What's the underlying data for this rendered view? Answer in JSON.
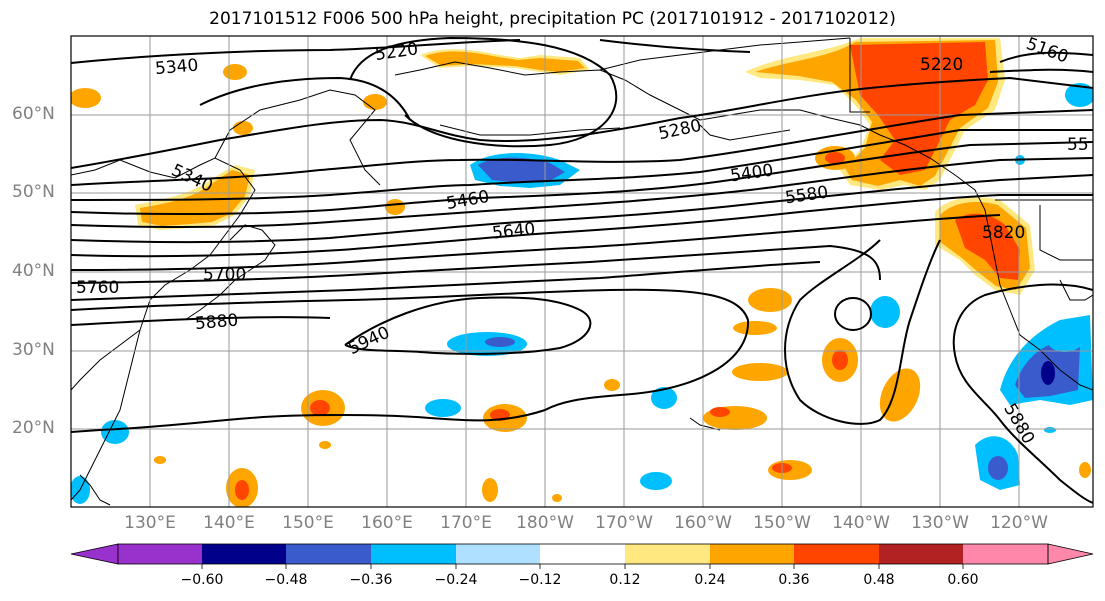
{
  "title": "2017101512 F006 500 hPa height, precipitation PC (2017101912 - 2017102012)",
  "lat_labels": [
    "60°N",
    "50°N",
    "40°N",
    "30°N",
    "20°N"
  ],
  "lon_labels": [
    "130°E",
    "140°E",
    "150°E",
    "160°E",
    "170°E",
    "180°W",
    "170°W",
    "160°W",
    "150°W",
    "140°W",
    "130°W",
    "120°W"
  ],
  "colorbar": {
    "tick_labels": [
      "−0.60",
      "−0.48",
      "−0.36",
      "−0.24",
      "−0.12",
      "0.12",
      "0.24",
      "0.36",
      "0.48",
      "0.60"
    ],
    "colors": [
      "#9932cc",
      "#00008b",
      "#3a5bcc",
      "#00bfff",
      "#b0e0ff",
      "#ffffff",
      "#ffe880",
      "#ffa500",
      "#ff4500",
      "#b22222",
      "#ff88aa"
    ]
  },
  "contour_labels": {
    "l5340a": "5340",
    "l5220a": "5220",
    "l5220b": "5220",
    "l5160": "5160",
    "l5280": "5280",
    "l55": "55",
    "l5400": "5400",
    "l5580": "5580",
    "l5340b": "5340",
    "l5460": "5460",
    "l5640": "5640",
    "l5820": "5820",
    "l5700": "5700",
    "l5760": "5760",
    "l5880a": "5880",
    "l5940": "5940",
    "l5880b": "5880"
  }
}
